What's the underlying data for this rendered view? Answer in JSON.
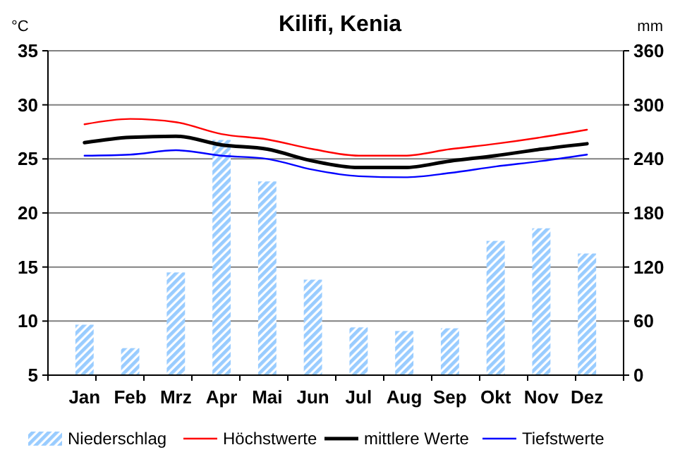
{
  "chart_data": {
    "type": "line",
    "title": "Kilifi, Kenia",
    "ylabel": "°C",
    "y2label": "mm",
    "categories": [
      "Jan",
      "Feb",
      "Mrz",
      "Apr",
      "Mai",
      "Jun",
      "Jul",
      "Aug",
      "Sep",
      "Okt",
      "Nov",
      "Dez"
    ],
    "series": [
      {
        "name": "Niederschlag",
        "type": "bar",
        "axis": "y2",
        "color": "#99ccff",
        "values": [
          56,
          30,
          114,
          261,
          215,
          106,
          53,
          49,
          52,
          149,
          163,
          135
        ]
      },
      {
        "name": "Höchstwerte",
        "color": "#ff0000",
        "values": [
          28.2,
          28.7,
          28.4,
          27.3,
          26.8,
          25.9,
          25.3,
          25.3,
          25.9,
          26.4,
          27.0,
          27.7
        ]
      },
      {
        "name": "mittlere Werte",
        "color": "#000000",
        "values": [
          26.5,
          27.0,
          27.1,
          26.3,
          25.9,
          24.8,
          24.2,
          24.2,
          24.8,
          25.3,
          25.9,
          26.4
        ]
      },
      {
        "name": "Tiefstwerte",
        "color": "#0000ff",
        "values": [
          25.3,
          25.4,
          25.8,
          25.3,
          25.0,
          24.0,
          23.4,
          23.3,
          23.7,
          24.3,
          24.8,
          25.4
        ]
      }
    ],
    "ylim": [
      5,
      35
    ],
    "yticks": [
      5,
      10,
      15,
      20,
      25,
      30,
      35
    ],
    "y2lim": [
      0,
      360
    ],
    "y2ticks": [
      0,
      60,
      120,
      180,
      240,
      300,
      360
    ],
    "grid": "y",
    "legend": "bottom",
    "marker": "none",
    "line_style": "solid"
  }
}
